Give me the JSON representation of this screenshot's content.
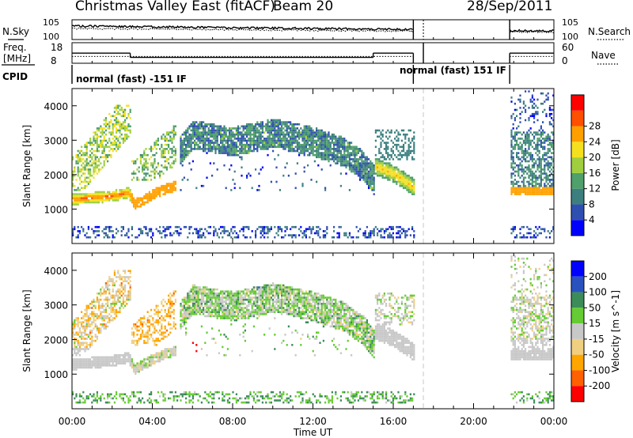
{
  "header": {
    "title": "Christmas Valley East (fitACF)",
    "beam": "Beam 20",
    "date": "28/Sep/2011"
  },
  "strip_labels": {
    "nsky": "N.Sky",
    "freq": "Freq.",
    "freq_unit": "[MHz]",
    "cpid": "CPID",
    "nsearch": "N.Search",
    "nave": "Nave"
  },
  "strip_ticks": {
    "nsky_left": [
      "10^5",
      "10^0"
    ],
    "nsearch_right": [
      "10^5",
      "10^0"
    ],
    "freq_left": [
      "18",
      "8"
    ],
    "nave_right": [
      "60",
      "0"
    ]
  },
  "cpid_labels": [
    "normal (fast) -151 IF",
    "normal (fast) 151 IF"
  ],
  "panels": {
    "power": {
      "ylabel": "Slant Range [km]",
      "colorbar_label": "Power [dB]",
      "colorbar_ticks": [
        "4",
        "8",
        "12",
        "16",
        "20",
        "24",
        "28"
      ]
    },
    "velocity": {
      "ylabel": "Slant Range [km]",
      "colorbar_label": "Velocity [m s^-1]",
      "colorbar_ticks": [
        "200",
        "100",
        "50",
        "15",
        "-15",
        "-50",
        "-100",
        "-200"
      ]
    }
  },
  "x_axis": {
    "label": "Time UT",
    "ticks": [
      "00:00",
      "04:00",
      "08:00",
      "12:00",
      "16:00",
      "20:00",
      "00:00"
    ]
  },
  "y_axis": {
    "ticks": [
      "1000",
      "2000",
      "3000",
      "4000"
    ]
  },
  "colors": {
    "power_scale": [
      "#0000ff",
      "#2f4fb0",
      "#3d7f7f",
      "#4fa06a",
      "#9fcf3f",
      "#f5e01f",
      "#ffa000",
      "#ff5000",
      "#ff0000"
    ],
    "velocity_scale": [
      "#0000ff",
      "#2a52be",
      "#3c8c5a",
      "#66cc33",
      "#c8c8c8",
      "#f0d080",
      "#ffa500",
      "#ff6000",
      "#ff0000"
    ],
    "gap_line": "#c8c8c8"
  },
  "chart_data": {
    "type": "heatmap",
    "x_unit": "hours UT",
    "x_range": [
      0,
      24
    ],
    "y_unit": "km",
    "y_range": [
      0,
      4500
    ],
    "data_gap_hours": [
      17.0,
      21.8
    ],
    "frequency_MHz": [
      {
        "start": 0,
        "end": 2.9,
        "value": 14
      },
      {
        "start": 2.9,
        "end": 15.0,
        "value": 11
      },
      {
        "start": 15.0,
        "end": 17.0,
        "value": 14
      },
      {
        "start": 21.8,
        "end": 24,
        "value": 14
      }
    ],
    "nave_level": [
      {
        "start": 0,
        "end": 17.0,
        "value": 20
      },
      {
        "start": 21.8,
        "end": 24,
        "value": 20
      }
    ],
    "power_ridge_km": [
      [
        0.0,
        1250
      ],
      [
        1.0,
        1300
      ],
      [
        2.0,
        1350
      ],
      [
        2.8,
        1450
      ],
      [
        3.1,
        1100
      ],
      [
        4.0,
        1400
      ],
      [
        4.8,
        1600
      ],
      [
        15.1,
        2200
      ],
      [
        16.0,
        2000
      ],
      [
        17.0,
        1600
      ],
      [
        21.8,
        1500
      ],
      [
        23.0,
        1500
      ],
      [
        24.0,
        1500
      ]
    ],
    "echo_band_km": [
      [
        5.3,
        2700
      ],
      [
        6.0,
        3200
      ],
      [
        8.0,
        3000
      ],
      [
        10.0,
        3250
      ],
      [
        12.0,
        3000
      ],
      [
        13.5,
        2700
      ],
      [
        14.5,
        2300
      ],
      [
        15.0,
        1900
      ]
    ]
  }
}
